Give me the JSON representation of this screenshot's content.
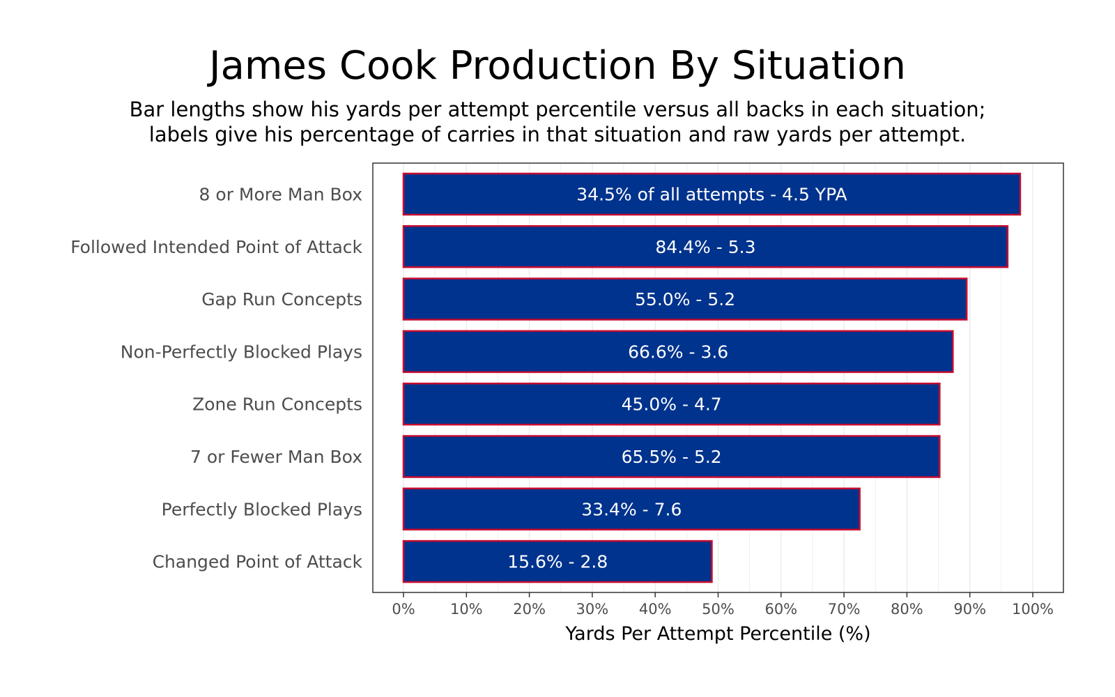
{
  "chart_data": {
    "type": "bar",
    "orientation": "horizontal",
    "title": "James Cook Production By Situation",
    "subtitle": [
      "Bar lengths show his yards per attempt percentile versus all backs in each situation;",
      "labels give his percentage of carries in that situation and raw yards per attempt."
    ],
    "xlabel": "Yards Per Attempt Percentile (%)",
    "ylabel": "",
    "xlim": [
      0,
      100
    ],
    "x_ticks": [
      "0%",
      "10%",
      "20%",
      "30%",
      "40%",
      "50%",
      "60%",
      "70%",
      "80%",
      "90%",
      "100%"
    ],
    "categories": [
      "8 or More Man Box",
      "Followed Intended Point of Attack",
      "Gap Run Concepts",
      "Non-Perfectly Blocked Plays",
      "Zone Run Concepts",
      "7 or Fewer Man Box",
      "Perfectly Blocked Plays",
      "Changed Point of Attack"
    ],
    "values": [
      98,
      96,
      89.5,
      87.3,
      85.2,
      85.2,
      72.5,
      49
    ],
    "bar_labels": [
      "34.5% of all attempts - 4.5 YPA",
      "84.4% - 5.3",
      "55.0% - 5.2",
      "66.6% - 3.6",
      "45.0% - 4.7",
      "65.5% - 5.2",
      "33.4% - 7.6",
      "15.6% - 2.8"
    ],
    "grid": true,
    "legend": "none",
    "colors": {
      "bar_fill": "#00338D",
      "bar_outline": "#C60C30",
      "grid": "#ebebeb",
      "panel_border": "#333333"
    }
  }
}
